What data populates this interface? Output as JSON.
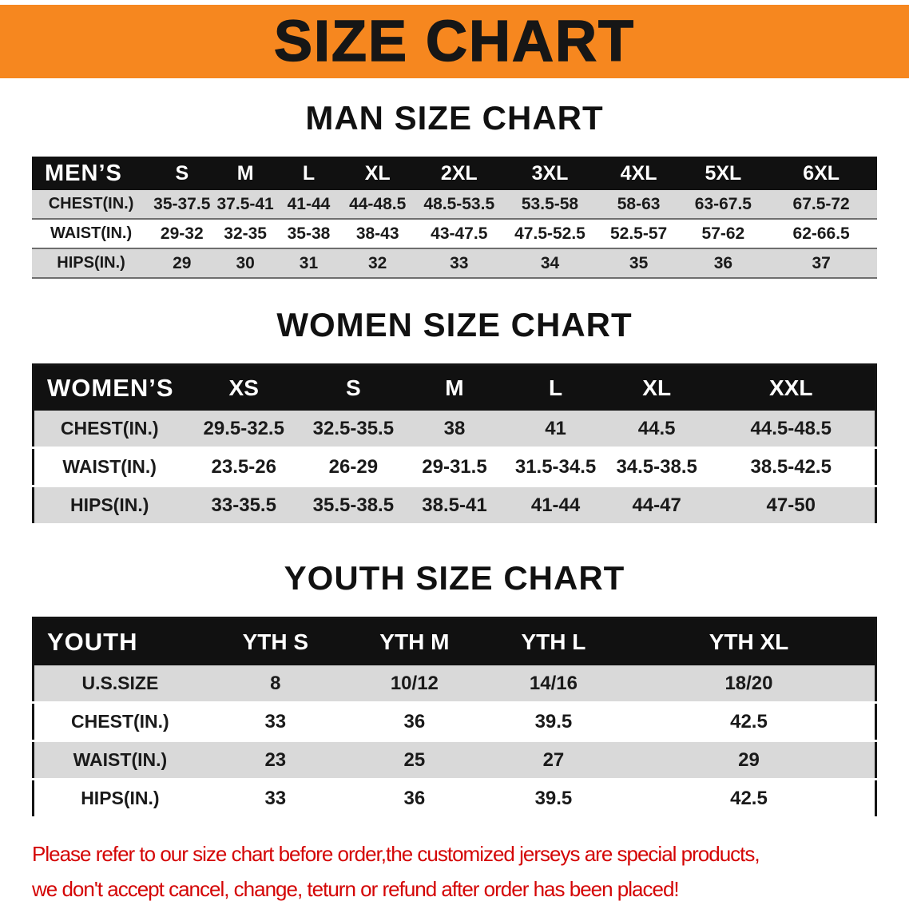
{
  "banner": {
    "title": "SIZE CHART",
    "bg_color": "#f6871f",
    "text_color": "#161616"
  },
  "sections": [
    {
      "heading": "MAN SIZE CHART",
      "table": {
        "header": [
          "MEN’S",
          "S",
          "M",
          "L",
          "XL",
          "2XL",
          "3XL",
          "4XL",
          "5XL",
          "6XL"
        ],
        "rows": [
          {
            "label": "CHEST(IN.)",
            "values": [
              "35-37.5",
              "37.5-41",
              "41-44",
              "44-48.5",
              "48.5-53.5",
              "53.5-58",
              "58-63",
              "63-67.5",
              "67.5-72"
            ]
          },
          {
            "label": "WAIST(IN.)",
            "values": [
              "29-32",
              "32-35",
              "35-38",
              "38-43",
              "43-47.5",
              "47.5-52.5",
              "52.5-57",
              "57-62",
              "62-66.5"
            ]
          },
          {
            "label": "HIPS(IN.)",
            "values": [
              "29",
              "30",
              "31",
              "32",
              "33",
              "34",
              "35",
              "36",
              "37"
            ]
          }
        ]
      }
    },
    {
      "heading": "WOMEN SIZE CHART",
      "table": {
        "header": [
          "WOMEN’S",
          "XS",
          "S",
          "M",
          "L",
          "XL",
          "XXL"
        ],
        "rows": [
          {
            "label": "CHEST(IN.)",
            "values": [
              "29.5-32.5",
              "32.5-35.5",
              "38",
              "41",
              "44.5",
              "44.5-48.5"
            ]
          },
          {
            "label": "WAIST(IN.)",
            "values": [
              "23.5-26",
              "26-29",
              "29-31.5",
              "31.5-34.5",
              "34.5-38.5",
              "38.5-42.5"
            ]
          },
          {
            "label": "HIPS(IN.)",
            "values": [
              "33-35.5",
              "35.5-38.5",
              "38.5-41",
              "41-44",
              "44-47",
              "47-50"
            ]
          }
        ]
      }
    },
    {
      "heading": "YOUTH SIZE CHART",
      "table": {
        "header": [
          "YOUTH",
          "YTH S",
          "YTH M",
          "YTH L",
          "YTH XL"
        ],
        "rows": [
          {
            "label": "U.S.SIZE",
            "values": [
              "8",
              "10/12",
              "14/16",
              "18/20"
            ]
          },
          {
            "label": "CHEST(IN.)",
            "values": [
              "33",
              "36",
              "39.5",
              "42.5"
            ]
          },
          {
            "label": "WAIST(IN.)",
            "values": [
              "23",
              "25",
              "27",
              "29"
            ]
          },
          {
            "label": "HIPS(IN.)",
            "values": [
              "33",
              "36",
              "39.5",
              "42.5"
            ]
          }
        ]
      }
    }
  ],
  "footer_note": {
    "lines": [
      "Please refer to our size chart before order,the customized jerseys are special products,",
      "we don't accept cancel, change, teturn or refund after order has been placed!"
    ],
    "color": "#d40505"
  },
  "colors": {
    "row_shade": "#d9d9d9",
    "table_header_bg": "#111111",
    "table_header_text": "#ffffff"
  }
}
